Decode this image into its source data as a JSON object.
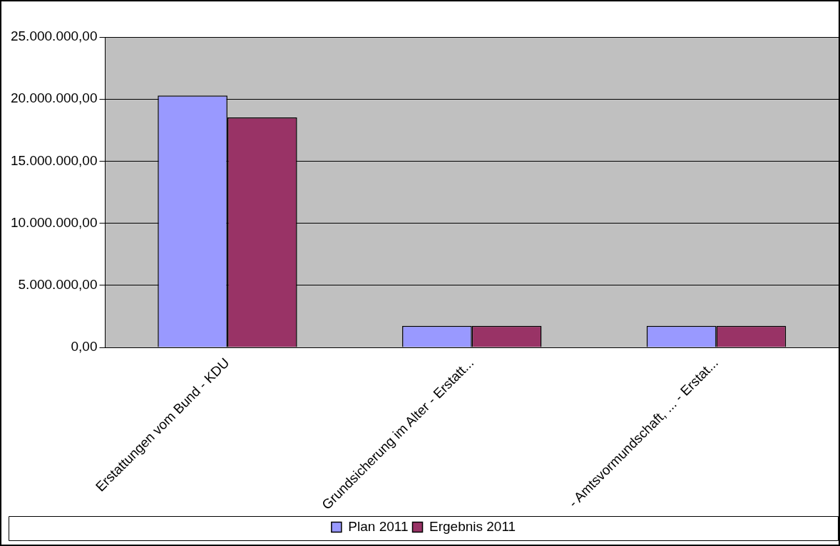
{
  "chart_data": {
    "type": "bar",
    "categories": [
      "Erstattungen vom Bund - KDU",
      "Grundsicherung im Alter - Erstatt...",
      "- Amtsvormundschaft, ... - Erstat..."
    ],
    "series": [
      {
        "name": "Plan 2011",
        "color": "#9999ff",
        "values": [
          20280000,
          1740000,
          1740000
        ]
      },
      {
        "name": "Ergebnis 2011",
        "color": "#993366",
        "values": [
          18520000,
          1740000,
          1740000
        ]
      }
    ],
    "ylim": [
      0,
      25000000
    ],
    "yticks": [
      {
        "value": 0,
        "label": "0,00"
      },
      {
        "value": 5000000,
        "label": "5.000.000,00"
      },
      {
        "value": 10000000,
        "label": "10.000.000,00"
      },
      {
        "value": 15000000,
        "label": "15.000.000,00"
      },
      {
        "value": 20000000,
        "label": "20.000.000,00"
      },
      {
        "value": 25000000,
        "label": "25.000.000,00"
      }
    ],
    "grid": "y",
    "legend": "bottom"
  }
}
